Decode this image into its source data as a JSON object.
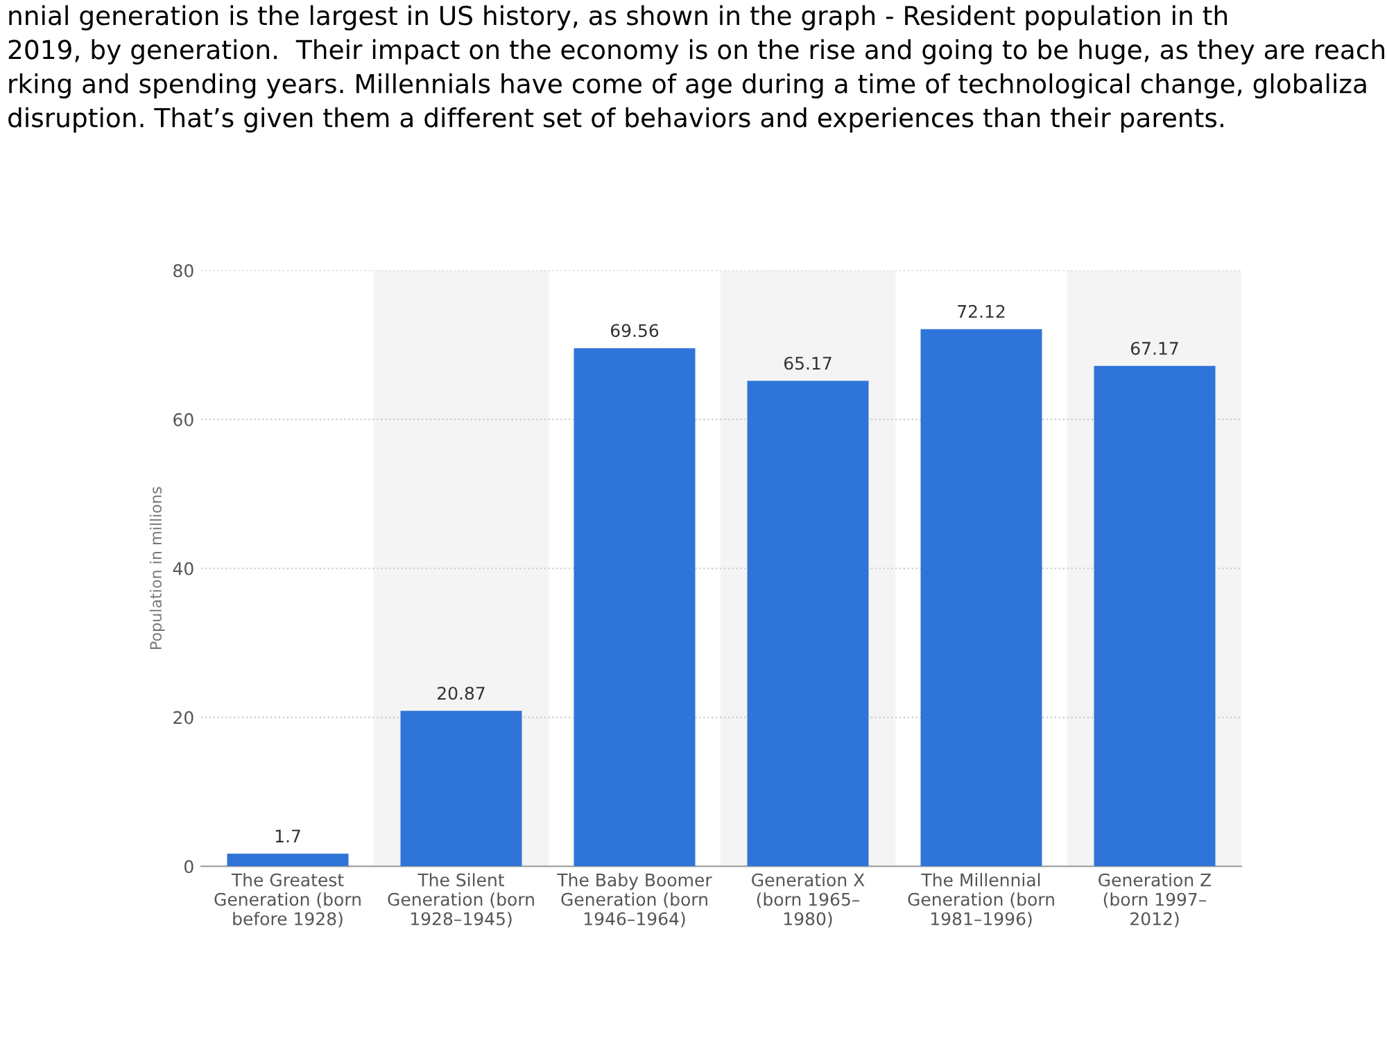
{
  "chart_data": {
    "type": "bar",
    "title": "nnial generation is the largest in US history, as shown in the graph - Resident population in th\n2019, by generation.  Their impact on the economy is on the rise and going to be huge, as they are reach\nrking and spending years. Millennials have come of age during a time of technological change, globaliza\ndisruption. That’s given them a different set of behaviors and experiences than their parents.",
    "ylabel": "Population in millions",
    "categories": [
      "The Greatest\nGeneration (born\nbefore 1928)",
      "The Silent\nGeneration (born\n1928–1945)",
      "The Baby Boomer\nGeneration (born\n1946–1964)",
      "Generation X\n(born 1965–\n1980)",
      "The Millennial\nGeneration (born\n1981–1996)",
      "Generation Z\n(born 1997–\n2012)"
    ],
    "values": [
      1.7,
      20.87,
      69.56,
      65.17,
      72.12,
      67.17
    ],
    "color": "#2f74d8",
    "ylim": [
      0,
      80
    ],
    "yticks": [
      0,
      20,
      40,
      60,
      80
    ],
    "grid": "y",
    "data_labels": true
  }
}
